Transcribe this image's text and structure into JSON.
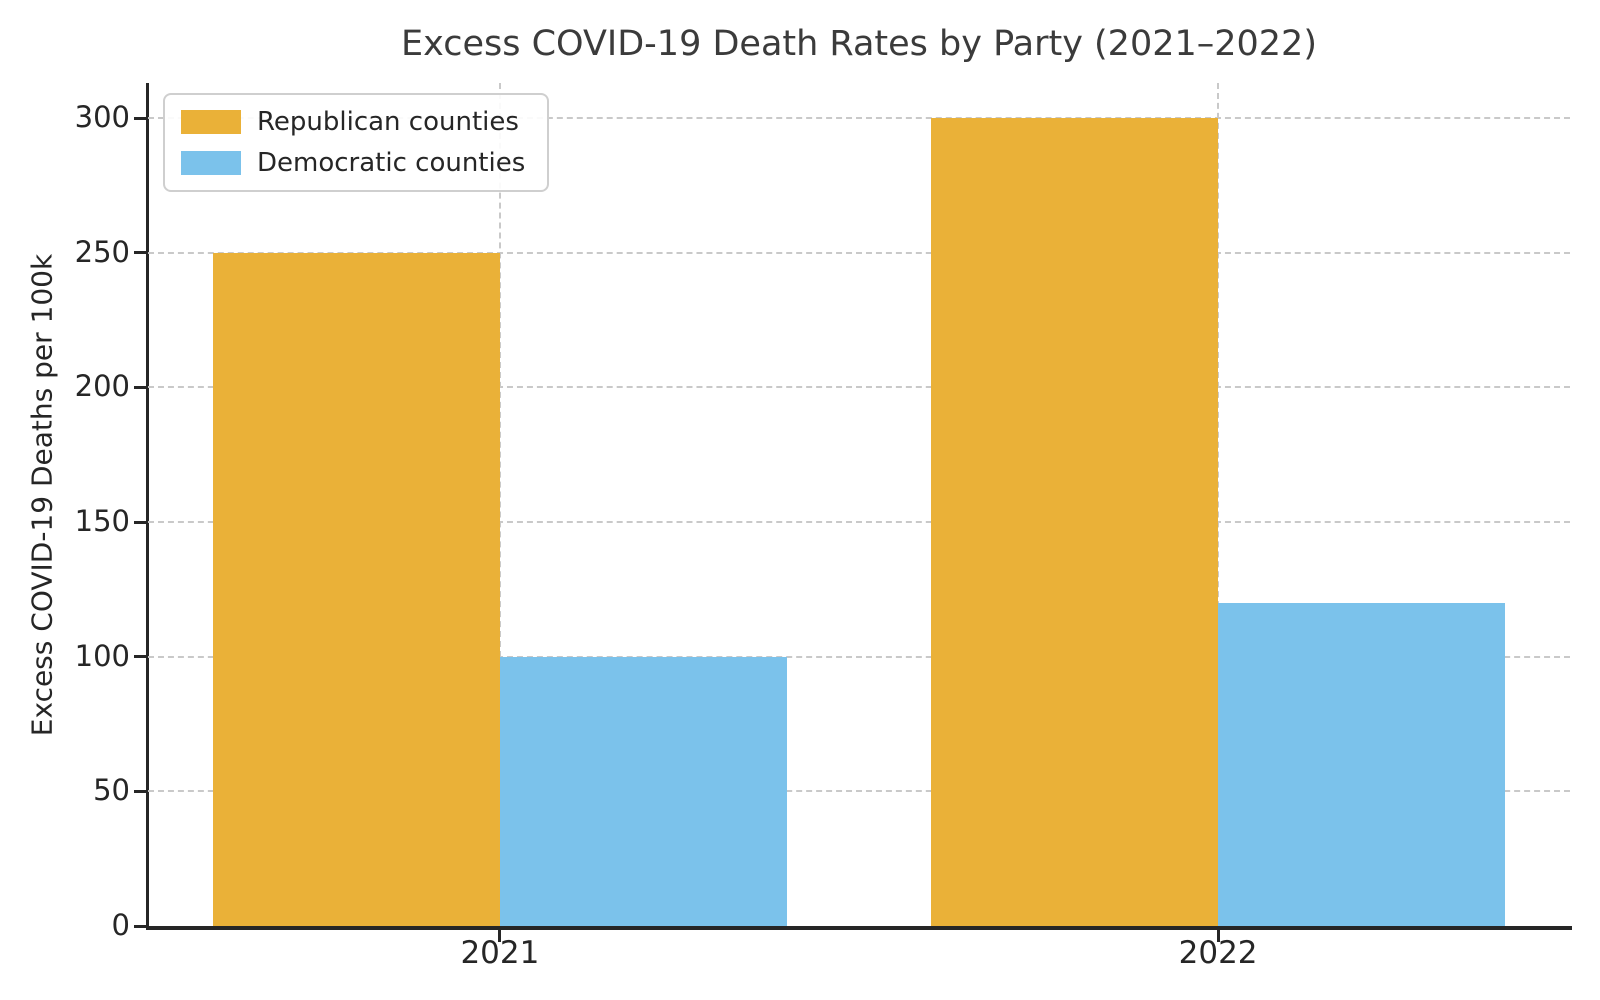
{
  "title": "Excess COVID-19 Death Rates by Party (2021–2022)",
  "chart_data": {
    "type": "bar",
    "title": "Excess COVID-19 Death Rates by Party (2021–2022)",
    "categories": [
      "2021",
      "2022"
    ],
    "series": [
      {
        "name": "Republican counties",
        "color": "#EAB138",
        "values": [
          250,
          300
        ]
      },
      {
        "name": "Democratic counties",
        "color": "#7BC2EB",
        "values": [
          100,
          120
        ]
      }
    ],
    "xlabel": "",
    "ylabel": "Excess COVID-19 Deaths per 100k",
    "yticks": [
      0,
      50,
      100,
      150,
      200,
      250,
      300
    ],
    "ylim": [
      0,
      313
    ],
    "bar_width": 0.4,
    "grid": true,
    "grid_style": "dashed",
    "axis_below": true,
    "legend_position": "upper left",
    "spines": [
      "left",
      "bottom"
    ]
  },
  "colors": {
    "background": "#ffffff",
    "axis": "#262626",
    "grid": "#c9c9c9",
    "title_text": "#3b3b3b",
    "republican": "#EAB138",
    "democratic": "#7BC2EB"
  }
}
